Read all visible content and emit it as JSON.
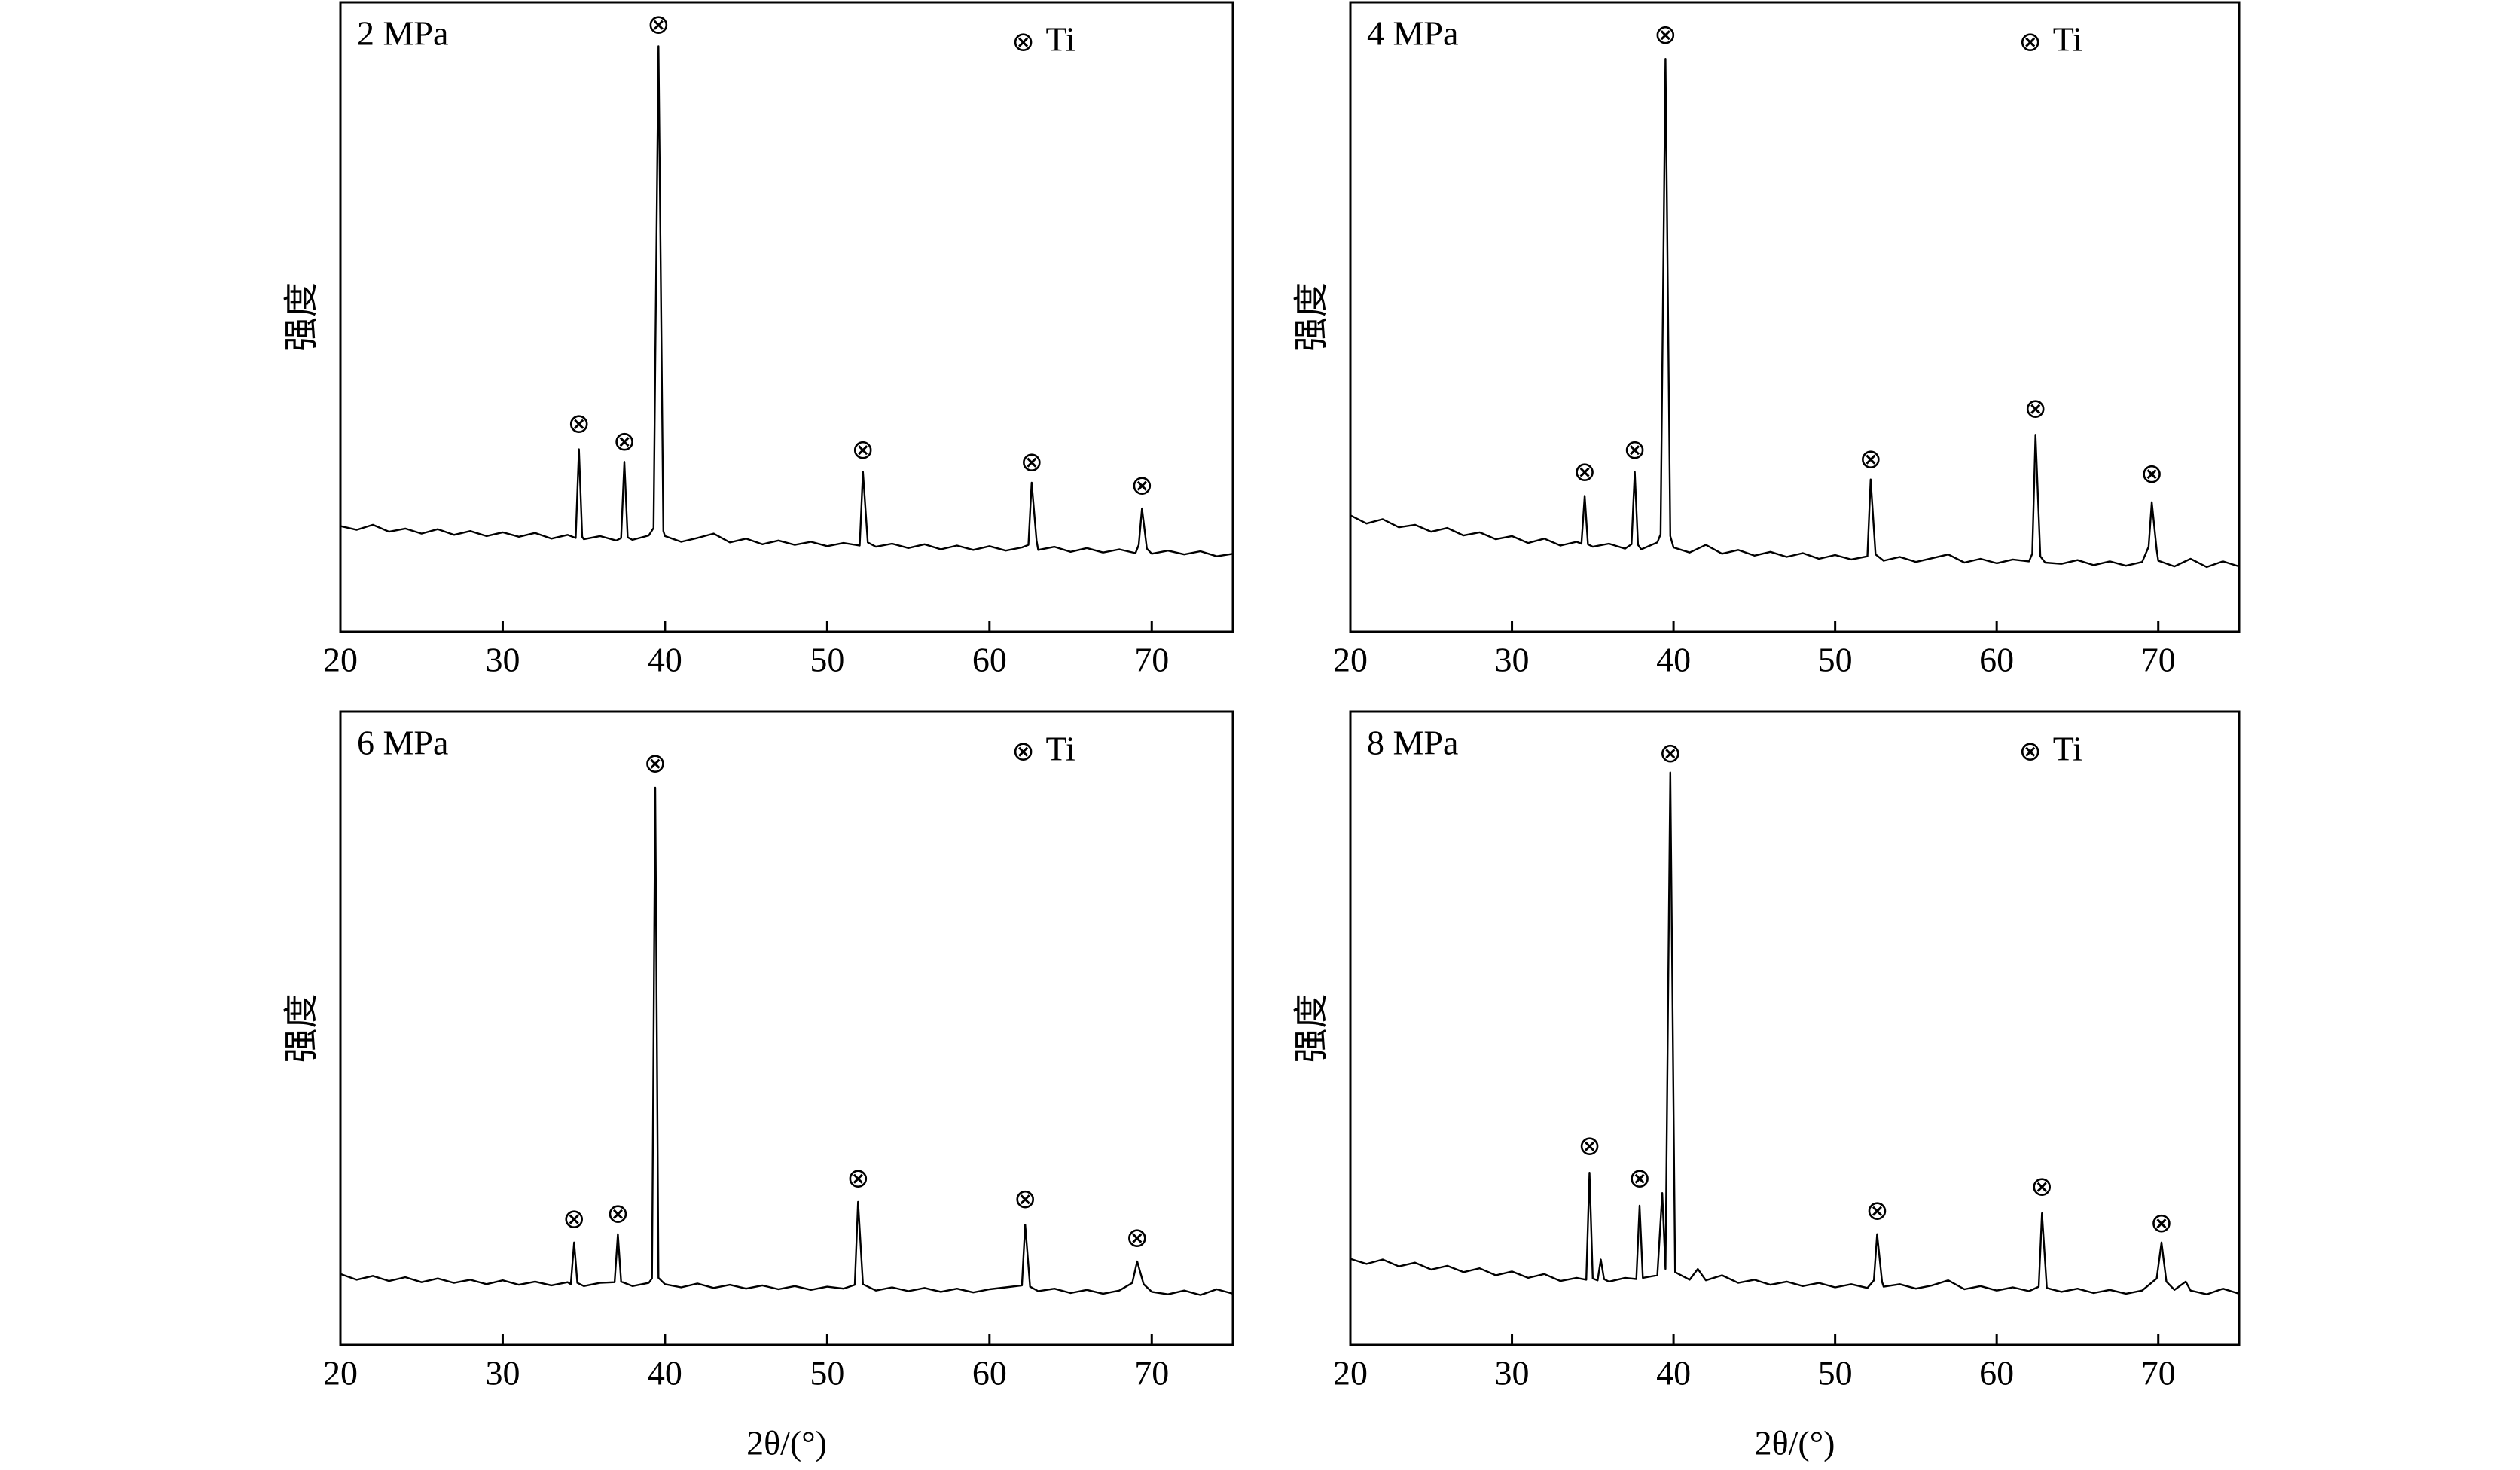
{
  "chart_data": [
    {
      "type": "line",
      "title": "2 MPa",
      "ylabel": "强度",
      "xlim": [
        20,
        75
      ],
      "xticks": [
        20,
        30,
        40,
        50,
        60,
        70
      ],
      "ylim": [
        0,
        100
      ],
      "color": "#000000",
      "legend": "upper right",
      "marker_symbol": "⊗",
      "marker_name": "Ti",
      "peaks": [
        {
          "x": 34.7,
          "y": 32.6
        },
        {
          "x": 37.5,
          "y": 29.8
        },
        {
          "x": 39.6,
          "y": 96
        },
        {
          "x": 52.2,
          "y": 28.5
        },
        {
          "x": 62.6,
          "y": 26.5
        },
        {
          "x": 69.4,
          "y": 22.8
        }
      ],
      "x": [
        20,
        21,
        22,
        23,
        24,
        25,
        26,
        27,
        28,
        29,
        30,
        31,
        32,
        33,
        34,
        34.5,
        34.7,
        34.9,
        35,
        36,
        37,
        37.3,
        37.5,
        37.7,
        38,
        39,
        39.3,
        39.6,
        39.9,
        40,
        41,
        42,
        43,
        44,
        45,
        46,
        47,
        48,
        49,
        50,
        51,
        52,
        52.2,
        52.5,
        53,
        54,
        55,
        56,
        57,
        58,
        59,
        60,
        61,
        62,
        62.4,
        62.6,
        62.9,
        63,
        64,
        65,
        66,
        67,
        68,
        69,
        69.2,
        69.4,
        69.7,
        70,
        71,
        72,
        73,
        74,
        75
      ],
      "values": [
        16.8,
        16.2,
        17.0,
        15.9,
        16.4,
        15.6,
        16.3,
        15.4,
        16.0,
        15.2,
        15.8,
        15.1,
        15.7,
        14.8,
        15.4,
        14.9,
        29,
        15.1,
        14.7,
        15.2,
        14.5,
        14.9,
        27,
        15.0,
        14.6,
        15.3,
        16.5,
        93,
        16.0,
        15.2,
        14.3,
        14.9,
        15.6,
        14.2,
        14.8,
        13.9,
        14.5,
        13.8,
        14.3,
        13.6,
        14.1,
        13.7,
        25.4,
        14.2,
        13.5,
        14.0,
        13.3,
        13.9,
        13.1,
        13.7,
        13.0,
        13.6,
        12.9,
        13.4,
        13.8,
        23.7,
        14.5,
        13.0,
        13.5,
        12.7,
        13.3,
        12.6,
        13.1,
        12.5,
        13.8,
        19.6,
        13.2,
        12.4,
        12.9,
        12.3,
        12.8,
        12.0,
        12.4
      ]
    },
    {
      "type": "line",
      "title": "4 MPa",
      "ylabel": "强度",
      "xlim": [
        20,
        75
      ],
      "xticks": [
        20,
        30,
        40,
        50,
        60,
        70
      ],
      "ylim": [
        0,
        100
      ],
      "color": "#000000",
      "legend": "upper right",
      "marker_symbol": "⊗",
      "marker_name": "Ti",
      "peaks": [
        {
          "x": 34.5,
          "y": 25
        },
        {
          "x": 37.6,
          "y": 28.5
        },
        {
          "x": 39.5,
          "y": 94.4
        },
        {
          "x": 52.2,
          "y": 27
        },
        {
          "x": 62.4,
          "y": 35
        },
        {
          "x": 69.6,
          "y": 24.7
        }
      ],
      "x": [
        20,
        21,
        22,
        23,
        24,
        25,
        26,
        27,
        28,
        29,
        30,
        31,
        32,
        33,
        34,
        34.3,
        34.5,
        34.7,
        35,
        36,
        37,
        37.4,
        37.6,
        37.8,
        38,
        39,
        39.2,
        39.5,
        39.8,
        40,
        41,
        42,
        43,
        44,
        45,
        46,
        47,
        48,
        49,
        50,
        51,
        52,
        52.2,
        52.5,
        53,
        54,
        55,
        56,
        57,
        58,
        59,
        60,
        61,
        62,
        62.2,
        62.4,
        62.7,
        63,
        64,
        65,
        66,
        67,
        68,
        69,
        69.4,
        69.6,
        69.9,
        70,
        71,
        72,
        73,
        74,
        75
      ],
      "values": [
        18.5,
        17.2,
        17.9,
        16.6,
        17.0,
        15.9,
        16.5,
        15.3,
        15.8,
        14.7,
        15.2,
        14.1,
        14.8,
        13.7,
        14.3,
        14.0,
        21.6,
        13.9,
        13.5,
        14.0,
        13.2,
        13.9,
        25.4,
        13.8,
        13.1,
        14.2,
        15.5,
        91,
        15.2,
        13.4,
        12.6,
        13.8,
        12.4,
        13.0,
        12.1,
        12.7,
        11.9,
        12.5,
        11.6,
        12.2,
        11.5,
        12.0,
        24.2,
        12.3,
        11.3,
        11.9,
        11.1,
        11.7,
        12.3,
        11.0,
        11.6,
        10.9,
        11.5,
        11.2,
        12.4,
        31.3,
        12.0,
        11.0,
        10.8,
        11.4,
        10.6,
        11.2,
        10.5,
        11.1,
        13.5,
        20.6,
        13.0,
        11.3,
        10.4,
        11.6,
        10.3,
        11.2,
        10.4
      ]
    },
    {
      "type": "line",
      "title": "6 MPa",
      "ylabel": "强度",
      "xlabel": "2θ/(°)",
      "xlim": [
        20,
        75
      ],
      "xticks": [
        20,
        30,
        40,
        50,
        60,
        70
      ],
      "ylim": [
        0,
        100
      ],
      "color": "#000000",
      "legend": "upper right",
      "marker_symbol": "⊗",
      "marker_name": "Ti",
      "peaks": [
        {
          "x": 34.4,
          "y": 19.5
        },
        {
          "x": 37.1,
          "y": 20.3
        },
        {
          "x": 39.4,
          "y": 91.4
        },
        {
          "x": 51.9,
          "y": 25.9
        },
        {
          "x": 62.2,
          "y": 22.6
        },
        {
          "x": 69.1,
          "y": 16.5
        }
      ],
      "x": [
        20,
        21,
        22,
        23,
        24,
        25,
        26,
        27,
        28,
        29,
        30,
        31,
        32,
        33,
        34,
        34.2,
        34.4,
        34.6,
        35,
        36,
        36.9,
        37.1,
        37.3,
        38,
        39,
        39.2,
        39.4,
        39.6,
        40,
        41,
        42,
        43,
        44,
        45,
        46,
        47,
        48,
        49,
        50,
        51,
        51.7,
        51.9,
        52.2,
        53,
        54,
        55,
        56,
        57,
        58,
        59,
        60,
        61,
        62,
        62.2,
        62.5,
        63,
        64,
        65,
        66,
        67,
        68,
        68.8,
        69.1,
        69.5,
        70,
        71,
        72,
        73,
        74,
        75
      ],
      "values": [
        11.2,
        10.3,
        10.9,
        10.1,
        10.7,
        9.9,
        10.5,
        9.8,
        10.3,
        9.6,
        10.2,
        9.5,
        10.0,
        9.4,
        9.9,
        9.6,
        16.2,
        9.8,
        9.3,
        9.8,
        9.9,
        17.5,
        10.0,
        9.3,
        9.8,
        10.5,
        88,
        10.6,
        9.6,
        9.1,
        9.7,
        9.0,
        9.5,
        8.9,
        9.4,
        8.8,
        9.3,
        8.7,
        9.2,
        8.9,
        9.5,
        22.6,
        9.6,
        8.6,
        9.1,
        8.5,
        9.0,
        8.4,
        8.9,
        8.3,
        8.8,
        9.1,
        9.4,
        19,
        9.2,
        8.5,
        8.9,
        8.2,
        8.7,
        8.1,
        8.6,
        9.8,
        13.2,
        9.6,
        8.4,
        8.0,
        8.6,
        7.9,
        8.8,
        8.1
      ]
    },
    {
      "type": "line",
      "title": "8 MPa",
      "ylabel": "强度",
      "xlabel": "2θ/(°)",
      "xlim": [
        20,
        75
      ],
      "xticks": [
        20,
        30,
        40,
        50,
        60,
        70
      ],
      "ylim": [
        0,
        100
      ],
      "color": "#000000",
      "legend": "upper right",
      "marker_symbol": "⊗",
      "marker_name": "Ti",
      "peaks": [
        {
          "x": 34.8,
          "y": 31
        },
        {
          "x": 37.9,
          "y": 25.9
        },
        {
          "x": 39.8,
          "y": 93
        },
        {
          "x": 52.6,
          "y": 20.8
        },
        {
          "x": 62.8,
          "y": 24.6
        },
        {
          "x": 70.2,
          "y": 18.8
        }
      ],
      "x": [
        20,
        21,
        22,
        23,
        24,
        25,
        26,
        27,
        28,
        29,
        30,
        31,
        32,
        33,
        34,
        34.6,
        34.8,
        35,
        35.3,
        35.5,
        35.7,
        36,
        37,
        37.7,
        37.9,
        38.1,
        39,
        39.3,
        39.5,
        39.8,
        40.1,
        41,
        41.5,
        42,
        43,
        44,
        45,
        46,
        47,
        48,
        49,
        50,
        51,
        52,
        52.4,
        52.6,
        52.9,
        53,
        54,
        55,
        56,
        57,
        58,
        59,
        60,
        61,
        62,
        62.6,
        62.8,
        63.1,
        64,
        65,
        66,
        67,
        68,
        69,
        69.9,
        70.2,
        70.5,
        71,
        71.7,
        72,
        73,
        74,
        75
      ],
      "values": [
        13.6,
        12.8,
        13.5,
        12.4,
        13.0,
        11.9,
        12.5,
        11.5,
        12.1,
        11.0,
        11.6,
        10.6,
        11.2,
        10.1,
        10.6,
        10.3,
        27.2,
        10.5,
        10.2,
        13.5,
        10.4,
        10.0,
        10.6,
        10.4,
        22,
        10.6,
        11.0,
        24,
        12,
        90.4,
        11.5,
        10.3,
        12.0,
        10.2,
        11.0,
        9.8,
        10.3,
        9.5,
        10.0,
        9.3,
        9.8,
        9.1,
        9.6,
        9.0,
        10.2,
        17.5,
        10.0,
        9.2,
        9.6,
        8.9,
        9.4,
        10.2,
        8.8,
        9.3,
        8.6,
        9.1,
        8.5,
        9.2,
        20.8,
        9.0,
        8.4,
        8.9,
        8.2,
        8.7,
        8.1,
        8.6,
        10.5,
        16.2,
        10.0,
        8.7,
        10.0,
        8.6,
        8.0,
        8.9,
        8.1
      ]
    }
  ]
}
